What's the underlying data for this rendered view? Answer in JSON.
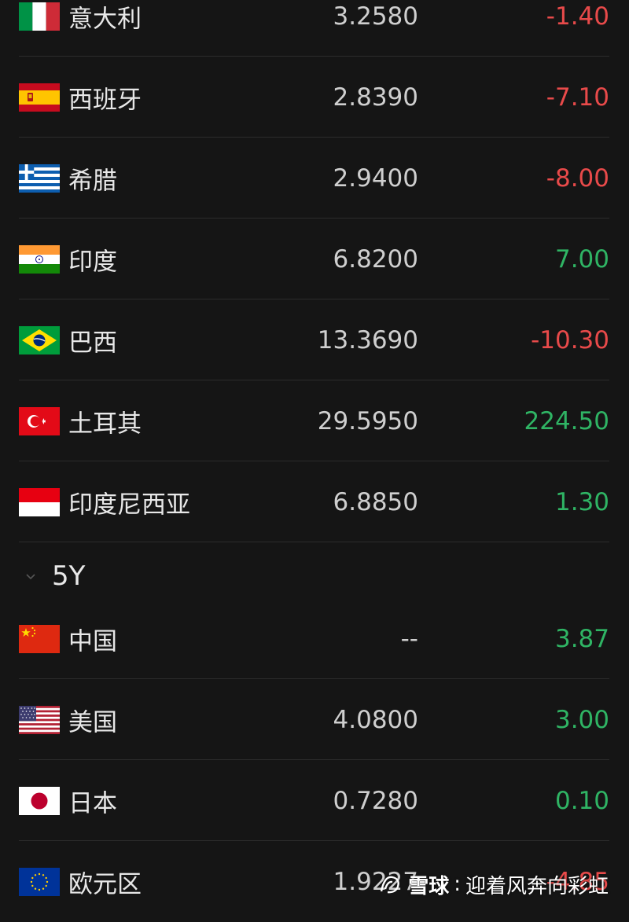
{
  "section_10y": {
    "rows": [
      {
        "name": "意大利",
        "value": "3.2580",
        "change": "-1.40",
        "flag": "italy-flag-icon"
      },
      {
        "name": "西班牙",
        "value": "2.8390",
        "change": "-7.10",
        "flag": "spain-flag-icon"
      },
      {
        "name": "希腊",
        "value": "2.9400",
        "change": "-8.00",
        "flag": "greece-flag-icon"
      },
      {
        "name": "印度",
        "value": "6.8200",
        "change": "7.00",
        "flag": "india-flag-icon"
      },
      {
        "name": "巴西",
        "value": "13.3690",
        "change": "-10.30",
        "flag": "brazil-flag-icon"
      },
      {
        "name": "土耳其",
        "value": "29.5950",
        "change": "224.50",
        "flag": "turkey-flag-icon"
      },
      {
        "name": "印度尼西亚",
        "value": "6.8850",
        "change": "1.30",
        "flag": "indonesia-flag-icon"
      }
    ]
  },
  "section_5y": {
    "title": "5Y",
    "rows": [
      {
        "name": "中国",
        "value": "--",
        "change": "3.87",
        "flag": "china-flag-icon"
      },
      {
        "name": "美国",
        "value": "4.0800",
        "change": "3.00",
        "flag": "usa-flag-icon"
      },
      {
        "name": "日本",
        "value": "0.7280",
        "change": "0.10",
        "flag": "japan-flag-icon"
      },
      {
        "name": "欧元区",
        "value": "1.9227",
        "change": "-4.85",
        "flag": "eu-flag-icon"
      }
    ]
  },
  "colors": {
    "negative": "#e84a4a",
    "positive": "#2fb464",
    "background": "#151515"
  },
  "watermark": {
    "brand": "雪球",
    "separator": ":",
    "author": "迎着风奔向彩虹"
  }
}
